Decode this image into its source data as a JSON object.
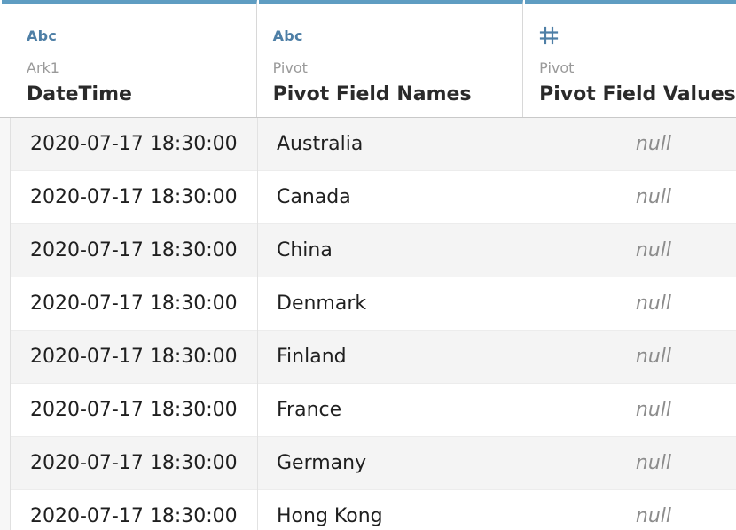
{
  "columns": [
    {
      "type": "Abc",
      "source": "Ark1",
      "name": "DateTime"
    },
    {
      "type": "Abc",
      "source": "Pivot",
      "name": "Pivot Field Names"
    },
    {
      "type_icon": "hash-icon",
      "source": "Pivot",
      "name": "Pivot Field Values"
    }
  ],
  "rows": [
    {
      "datetime": "2020-07-17 18:30:00",
      "name": "Australia",
      "value": "null"
    },
    {
      "datetime": "2020-07-17 18:30:00",
      "name": "Canada",
      "value": "null"
    },
    {
      "datetime": "2020-07-17 18:30:00",
      "name": "China",
      "value": "null"
    },
    {
      "datetime": "2020-07-17 18:30:00",
      "name": "Denmark",
      "value": "null"
    },
    {
      "datetime": "2020-07-17 18:30:00",
      "name": "Finland",
      "value": "null"
    },
    {
      "datetime": "2020-07-17 18:30:00",
      "name": "France",
      "value": "null"
    },
    {
      "datetime": "2020-07-17 18:30:00",
      "name": "Germany",
      "value": "null"
    },
    {
      "datetime": "2020-07-17 18:30:00",
      "name": "Hong Kong",
      "value": "null"
    }
  ],
  "colors": {
    "header_accent": "#5f9dc2",
    "type_label": "#4e7fa6",
    "null_text": "#8c8c8c"
  }
}
